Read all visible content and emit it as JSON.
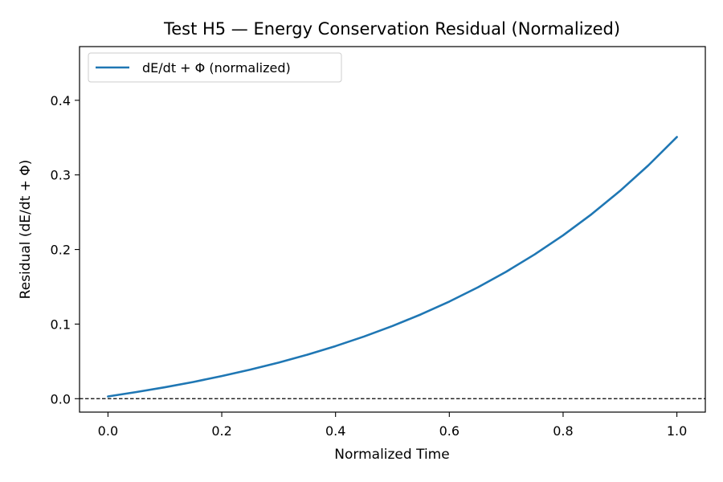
{
  "chart_data": {
    "type": "line",
    "title": "Test H5 — Energy Conservation Residual (Normalized)",
    "xlabel": "Normalized Time",
    "ylabel": "Residual (dE/dt + Φ)",
    "xlim": [
      -0.05,
      1.05
    ],
    "ylim": [
      -0.018,
      0.472
    ],
    "xticks": [
      0.0,
      0.2,
      0.4,
      0.6,
      0.8,
      1.0
    ],
    "xtick_labels": [
      "0.0",
      "0.2",
      "0.4",
      "0.6",
      "0.8",
      "1.0"
    ],
    "yticks": [
      0.0,
      0.1,
      0.2,
      0.3,
      0.4
    ],
    "ytick_labels": [
      "0.0",
      "0.1",
      "0.2",
      "0.3",
      "0.4"
    ],
    "grid": false,
    "legend": {
      "placement": "upper left"
    },
    "reference_line": {
      "y": 0.0,
      "style": "dashed",
      "color": "#000000"
    },
    "series": [
      {
        "name": "dE/dt + Φ (normalized)",
        "color": "#1f77b4",
        "x": [
          0.0,
          0.05,
          0.1,
          0.15,
          0.2,
          0.25,
          0.3,
          0.35,
          0.4,
          0.45,
          0.5,
          0.55,
          0.6,
          0.65,
          0.7,
          0.75,
          0.8,
          0.85,
          0.9,
          0.95,
          1.0
        ],
        "y": [
          0.003,
          0.0089,
          0.0153,
          0.0224,
          0.0303,
          0.0389,
          0.0484,
          0.0589,
          0.0705,
          0.0833,
          0.0974,
          0.113,
          0.1302,
          0.1492,
          0.1702,
          0.1934,
          0.219,
          0.2473,
          0.2785,
          0.3129,
          0.3508
        ]
      }
    ]
  }
}
